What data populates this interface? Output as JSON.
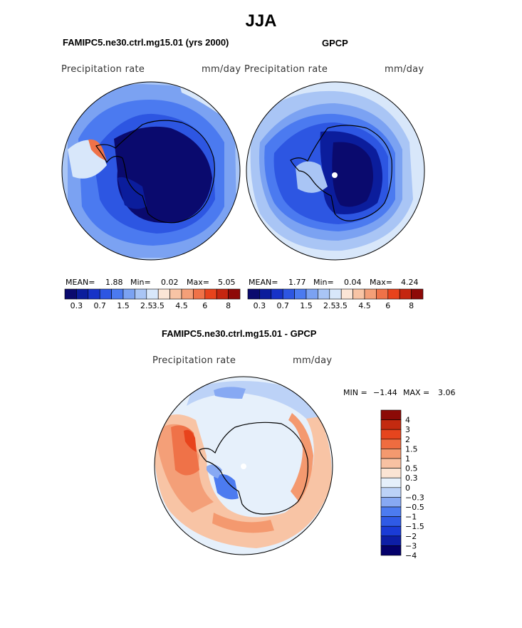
{
  "title": "JJA",
  "colors": {
    "abs_scale": [
      "#0a0a6e",
      "#0b1d9c",
      "#1733c8",
      "#2d56e2",
      "#4b7af0",
      "#7ba2f2",
      "#a9c5f5",
      "#d8e7fa",
      "#fbe5d6",
      "#f8c4a5",
      "#f49f78",
      "#ef7248",
      "#e8431c",
      "#c52610",
      "#8e0a08"
    ],
    "diff_scale": [
      "#04006b",
      "#0d1ea6",
      "#1a3bd6",
      "#2f5ae6",
      "#4c7bf0",
      "#87a9f3",
      "#bcd2f7",
      "#e6f0fb",
      "#fbe4d4",
      "#f8c1a2",
      "#f4996f",
      "#ef6c40",
      "#e6451e",
      "#c32a10",
      "#8c0a06"
    ],
    "land_fill_abs": "#0a0a6e",
    "land_fill_diff": "#dbe9fa"
  },
  "chart_data": [
    {
      "type": "map",
      "name": "FAMIPC5.ne30.ctrl.mg15.01 (yrs 2000)",
      "title": "FAMIPC5.ne30.ctrl.mg15.01 (yrs 2000)",
      "variable": "Precipitation rate",
      "units": "mm/day",
      "projection": "south-polar-stereographic",
      "stats": {
        "mean_label": "MEAN=",
        "mean": "1.88",
        "min_label": "Min=",
        "min": "0.02",
        "max_label": "Max=",
        "max": "5.05"
      },
      "colorbar_labels": [
        "0.3",
        "0.7",
        "1.5",
        "2.5",
        "3.5",
        "4.5",
        "6",
        "8"
      ],
      "colorbar_levels": 15
    },
    {
      "type": "map",
      "name": "GPCP",
      "title": "GPCP",
      "variable": "Precipitation rate",
      "units": "mm/day",
      "projection": "south-polar-stereographic",
      "stats": {
        "mean_label": "MEAN=",
        "mean": "1.77",
        "min_label": "Min=",
        "min": "0.04",
        "max_label": "Max=",
        "max": "4.24"
      },
      "colorbar_labels": [
        "0.3",
        "0.7",
        "1.5",
        "2.5",
        "3.5",
        "4.5",
        "6",
        "8"
      ],
      "colorbar_levels": 15
    },
    {
      "type": "map",
      "name": "FAMIPC5.ne30.ctrl.mg15.01 - GPCP",
      "title": "FAMIPC5.ne30.ctrl.mg15.01 - GPCP",
      "variable": "Precipitation rate",
      "units": "mm/day",
      "projection": "south-polar-stereographic",
      "stats": {
        "min_label": "MIN =",
        "min": "−1.44",
        "max_label": "MAX =",
        "max": "3.06"
      },
      "colorbar_labels": [
        "4",
        "3",
        "2",
        "1.5",
        "1",
        "0.5",
        "0.3",
        "0",
        "−0.3",
        "−0.5",
        "−1",
        "−1.5",
        "−2",
        "−3",
        "−4"
      ],
      "colorbar_levels": 15
    }
  ]
}
